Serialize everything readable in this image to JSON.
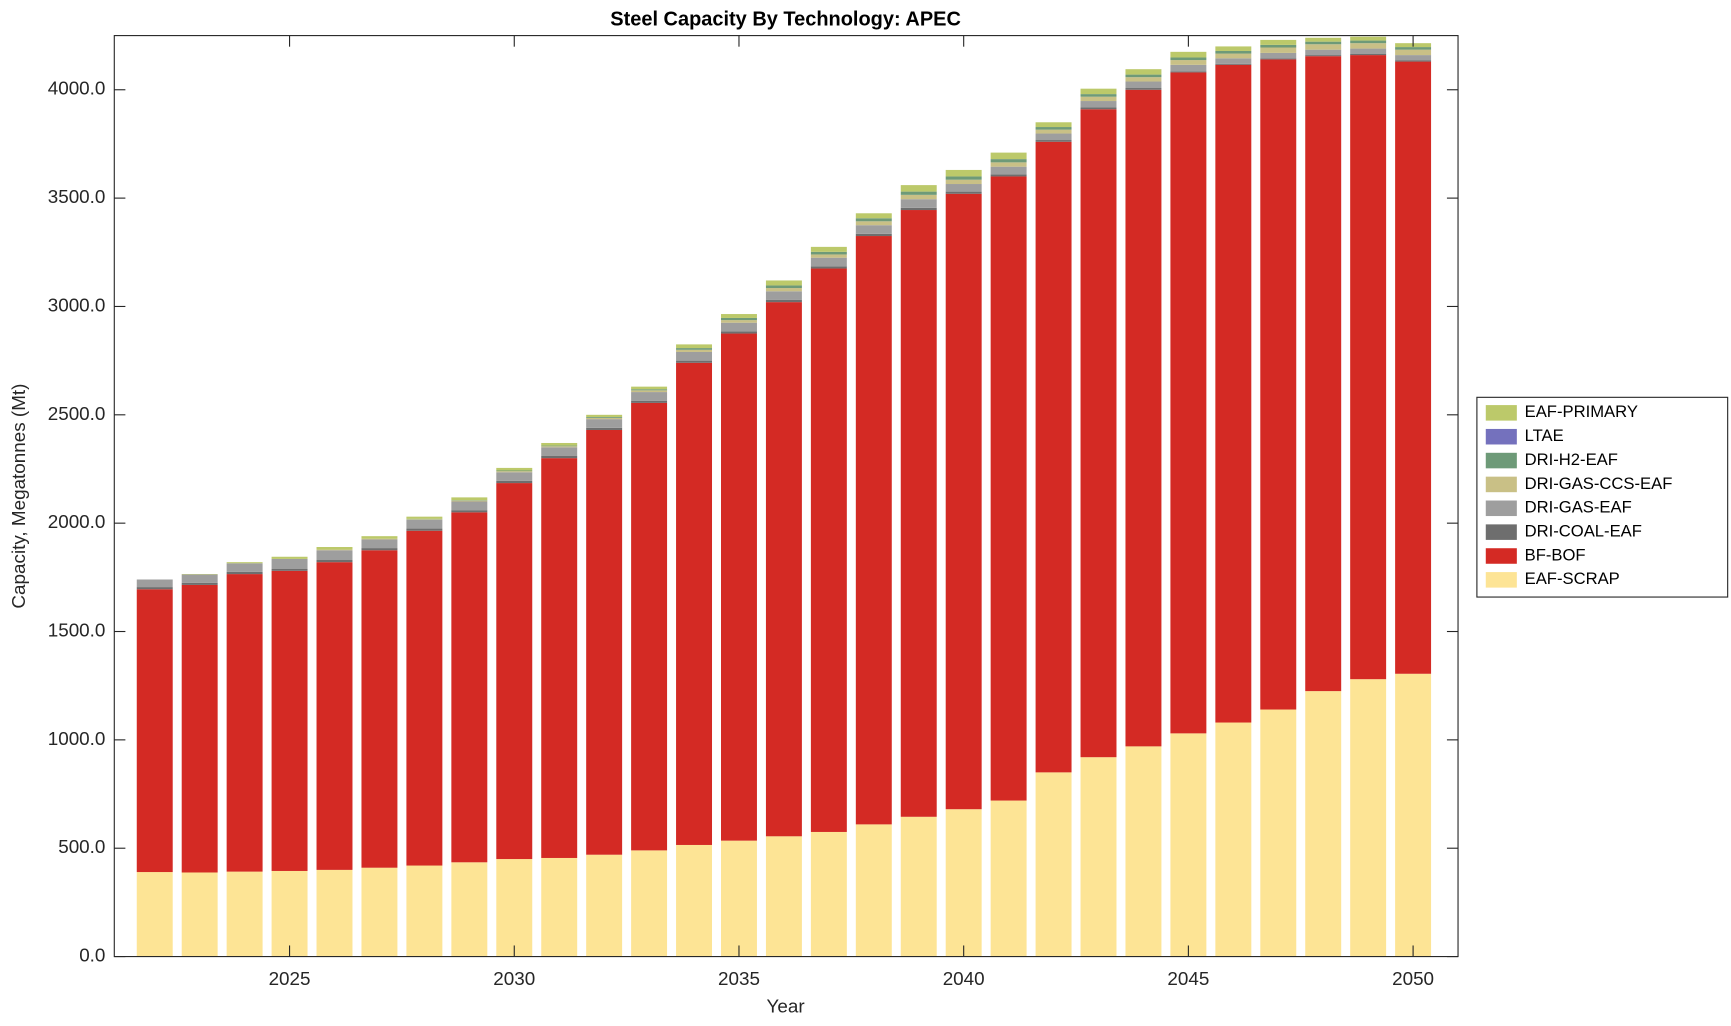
{
  "chart_data": {
    "type": "stacked-bar",
    "title": "Steel Capacity By Technology: APEC",
    "x_label": "Year",
    "y_label": "Capacity, Megatonnes (Mt)",
    "x": [
      2022,
      2023,
      2024,
      2025,
      2026,
      2027,
      2028,
      2029,
      2030,
      2031,
      2032,
      2033,
      2034,
      2035,
      2036,
      2037,
      2038,
      2039,
      2040,
      2041,
      2042,
      2043,
      2044,
      2045,
      2046,
      2047,
      2048,
      2049,
      2050
    ],
    "xlim": [
      2021.1,
      2051
    ],
    "xticks": [
      2025,
      2030,
      2035,
      2040,
      2045,
      2050
    ],
    "ylim": [
      0,
      4250
    ],
    "yticks": [
      {
        "value": 0,
        "label": "0.0"
      },
      {
        "value": 500,
        "label": "500.0"
      },
      {
        "value": 1000,
        "label": "1000.0"
      },
      {
        "value": 1500,
        "label": "1500.0"
      },
      {
        "value": 2000,
        "label": "2000.0"
      },
      {
        "value": 2500,
        "label": "2500.0"
      },
      {
        "value": 3000,
        "label": "3000.0"
      },
      {
        "value": 3500,
        "label": "3500.0"
      },
      {
        "value": 4000,
        "label": "4000.0"
      }
    ],
    "legend": "right",
    "series": [
      {
        "name": "EAF-SCRAP",
        "color": "#fde495",
        "values": [
          390,
          388,
          392,
          395,
          400,
          410,
          420,
          435,
          450,
          455,
          470,
          490,
          515,
          535,
          555,
          575,
          610,
          645,
          680,
          720,
          850,
          920,
          970,
          1030,
          1080,
          1140,
          1225,
          1280,
          1305
        ]
      },
      {
        "name": "BF-BOF",
        "color": "#d42a24",
        "values": [
          1305,
          1327,
          1373,
          1385,
          1420,
          1465,
          1545,
          1615,
          1735,
          1845,
          1960,
          2065,
          2225,
          2340,
          2465,
          2600,
          2715,
          2800,
          2840,
          2880,
          2910,
          2990,
          3030,
          3050,
          3035,
          3000,
          2930,
          2880,
          2825
        ]
      },
      {
        "name": "DRI-COAL-EAF",
        "color": "#6e6e6e",
        "values": [
          10,
          10,
          10,
          10,
          10,
          10,
          10,
          10,
          10,
          10,
          10,
          10,
          10,
          10,
          10,
          10,
          10,
          10,
          10,
          10,
          8,
          8,
          8,
          5,
          5,
          5,
          5,
          5,
          5
        ]
      },
      {
        "name": "DRI-GAS-EAF",
        "color": "#9e9e9e",
        "values": [
          35,
          38,
          40,
          45,
          45,
          40,
          40,
          40,
          40,
          40,
          40,
          40,
          40,
          40,
          40,
          40,
          40,
          40,
          35,
          35,
          30,
          30,
          30,
          30,
          25,
          25,
          25,
          25,
          25
        ]
      },
      {
        "name": "DRI-GAS-CCS-EAF",
        "color": "#c9c086",
        "values": [
          0,
          0,
          0,
          0,
          3,
          3,
          3,
          4,
          5,
          5,
          6,
          8,
          10,
          12,
          15,
          15,
          18,
          20,
          20,
          20,
          18,
          20,
          20,
          22,
          22,
          25,
          25,
          25,
          25
        ]
      },
      {
        "name": "DRI-H2-EAF",
        "color": "#6e9a78",
        "values": [
          0,
          0,
          0,
          0,
          0,
          0,
          2,
          2,
          3,
          3,
          4,
          5,
          8,
          10,
          12,
          12,
          14,
          15,
          15,
          15,
          12,
          12,
          12,
          12,
          12,
          12,
          12,
          12,
          12
        ]
      },
      {
        "name": "LTAE",
        "color": "#7471bd",
        "values": [
          0,
          0,
          0,
          0,
          0,
          0,
          0,
          0,
          0,
          0,
          0,
          0,
          0,
          0,
          0,
          0,
          0,
          0,
          0,
          0,
          0,
          0,
          0,
          0,
          0,
          0,
          0,
          0,
          0
        ]
      },
      {
        "name": "EAF-PRIMARY",
        "color": "#bcc96a",
        "values": [
          0,
          2,
          5,
          10,
          12,
          12,
          10,
          13,
          12,
          12,
          10,
          12,
          17,
          18,
          23,
          23,
          23,
          30,
          30,
          30,
          22,
          25,
          25,
          26,
          21,
          23,
          18,
          18,
          18
        ]
      }
    ]
  }
}
